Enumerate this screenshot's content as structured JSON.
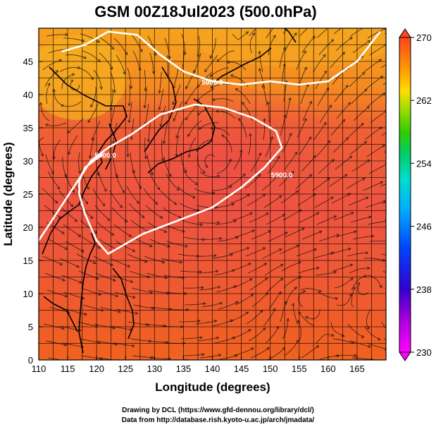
{
  "chart_data": {
    "type": "heatmap",
    "title": "GSM 00Z18Jul2023 (500.0hPa)",
    "xlabel": "Longitude (degrees)",
    "ylabel": "Latitude  (degrees)",
    "xlim": [
      110,
      170
    ],
    "ylim": [
      0,
      50
    ],
    "xticks": [
      110,
      115,
      120,
      125,
      130,
      135,
      140,
      145,
      150,
      155,
      160,
      165
    ],
    "yticks": [
      0,
      5,
      10,
      15,
      20,
      25,
      30,
      35,
      40,
      45
    ],
    "colorbar": {
      "min": 230,
      "max": 270,
      "ticks": [
        230,
        238,
        246,
        254,
        262,
        270
      ],
      "colors": [
        "#ff00ff",
        "#aa00dd",
        "#3300cc",
        "#0044ff",
        "#00aaff",
        "#00ddcc",
        "#00cc66",
        "#33cc00",
        "#99dd00",
        "#ffdd00",
        "#ff9900",
        "#ff4422"
      ]
    },
    "contours": [
      {
        "level": "5900.0",
        "points": [
          [
            110,
            18
          ],
          [
            113,
            22
          ],
          [
            116,
            26
          ],
          [
            119,
            30
          ],
          [
            122,
            32
          ],
          [
            126,
            34
          ],
          [
            131,
            37
          ],
          [
            137,
            38.5
          ],
          [
            142,
            38
          ],
          [
            147,
            36.5
          ],
          [
            151,
            34.5
          ],
          [
            152,
            32
          ],
          [
            149,
            29
          ],
          [
            145,
            26
          ],
          [
            140,
            23
          ],
          [
            134,
            21
          ],
          [
            128,
            19
          ],
          [
            124,
            17
          ],
          [
            122,
            16
          ],
          [
            120,
            18
          ],
          [
            118,
            22
          ],
          [
            117,
            25
          ],
          [
            117,
            27
          ],
          [
            118,
            29
          ],
          [
            121,
            31
          ]
        ]
      },
      {
        "level": "5900.0",
        "points": [
          [
            114,
            46.5
          ],
          [
            118,
            47.5
          ],
          [
            122,
            49.5
          ],
          [
            127,
            49
          ],
          [
            131,
            46
          ],
          [
            135,
            43.5
          ],
          [
            140,
            42
          ],
          [
            145,
            41.5
          ],
          [
            150,
            42
          ],
          [
            155,
            41.5
          ],
          [
            160,
            42
          ],
          [
            165,
            45
          ],
          [
            169,
            49.5
          ]
        ]
      }
    ],
    "contour_labels": [
      {
        "text": "5900.0",
        "x": 121.5,
        "y": 30.5
      },
      {
        "text": "5900.0",
        "x": 140,
        "y": 41.5
      },
      {
        "text": "5900.0",
        "x": 152,
        "y": 27.5
      }
    ]
  },
  "credits": {
    "line1": "Drawing by DCL (https://www.gfd-dennou.org/library/dcl/)",
    "line2": "Data from http://database.rish.kyoto-u.ac.jp/arch/jmadata/"
  }
}
